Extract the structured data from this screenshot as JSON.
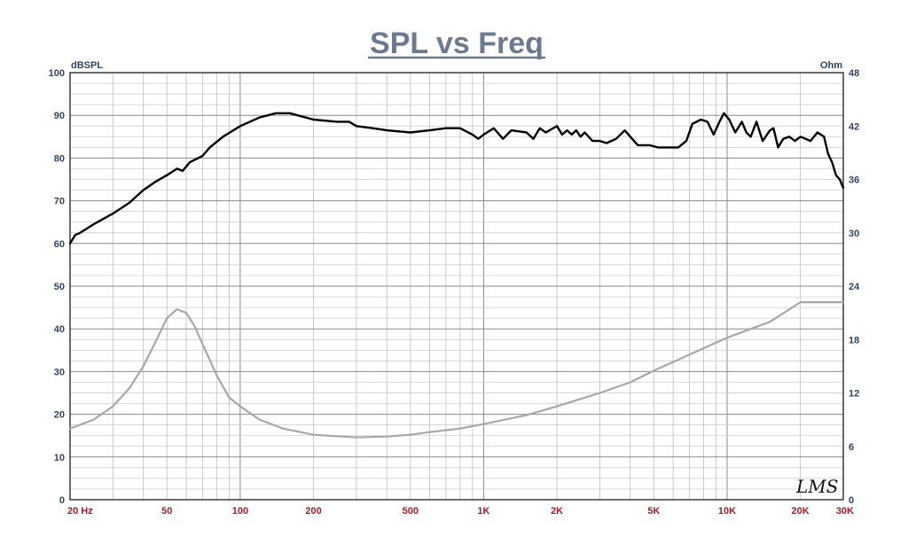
{
  "chart_data": {
    "type": "line",
    "title": "SPL vs Freq",
    "left_unit": "dBSPL",
    "right_unit": "Ohm",
    "x_scale": "log",
    "xlim": [
      20,
      30000
    ],
    "ylim": [
      0,
      100
    ],
    "y2lim": [
      0,
      48
    ],
    "grid": true,
    "x_tick_labels": [
      {
        "f": 20,
        "label": "20  Hz"
      },
      {
        "f": 50,
        "label": "50"
      },
      {
        "f": 100,
        "label": "100"
      },
      {
        "f": 200,
        "label": "200"
      },
      {
        "f": 500,
        "label": "500"
      },
      {
        "f": 1000,
        "label": "1K"
      },
      {
        "f": 2000,
        "label": "2K"
      },
      {
        "f": 5000,
        "label": "5K"
      },
      {
        "f": 10000,
        "label": "10K"
      },
      {
        "f": 20000,
        "label": "20K"
      },
      {
        "f": 30000,
        "label": "30K"
      }
    ],
    "y_ticks": [
      0,
      10,
      20,
      30,
      40,
      50,
      60,
      70,
      80,
      90,
      100
    ],
    "y2_ticks": [
      0,
      6,
      12,
      18,
      24,
      30,
      36,
      42,
      48
    ],
    "series": [
      {
        "axis": "left",
        "color": "#000000",
        "points": [
          [
            20,
            60
          ],
          [
            21,
            62
          ],
          [
            22,
            62.5
          ],
          [
            25,
            64.5
          ],
          [
            30,
            67
          ],
          [
            35,
            69.5
          ],
          [
            40,
            72.5
          ],
          [
            45,
            74.5
          ],
          [
            50,
            76
          ],
          [
            55,
            77.5
          ],
          [
            58,
            77
          ],
          [
            62,
            79
          ],
          [
            70,
            80.5
          ],
          [
            75,
            82.5
          ],
          [
            85,
            85
          ],
          [
            100,
            87.5
          ],
          [
            120,
            89.5
          ],
          [
            140,
            90.5
          ],
          [
            160,
            90.5
          ],
          [
            200,
            89
          ],
          [
            250,
            88.5
          ],
          [
            280,
            88.5
          ],
          [
            300,
            87.5
          ],
          [
            350,
            87
          ],
          [
            400,
            86.5
          ],
          [
            500,
            86
          ],
          [
            600,
            86.5
          ],
          [
            700,
            87
          ],
          [
            800,
            87
          ],
          [
            900,
            85.5
          ],
          [
            950,
            84.5
          ],
          [
            1000,
            85.5
          ],
          [
            1100,
            87
          ],
          [
            1200,
            84.5
          ],
          [
            1300,
            86.5
          ],
          [
            1500,
            86
          ],
          [
            1600,
            84.5
          ],
          [
            1700,
            87
          ],
          [
            1800,
            86
          ],
          [
            2000,
            87.5
          ],
          [
            2100,
            85.5
          ],
          [
            2200,
            86.5
          ],
          [
            2300,
            85.5
          ],
          [
            2400,
            86.5
          ],
          [
            2500,
            85
          ],
          [
            2600,
            86
          ],
          [
            2800,
            84
          ],
          [
            3000,
            84
          ],
          [
            3200,
            83.5
          ],
          [
            3500,
            84.5
          ],
          [
            3800,
            86.5
          ],
          [
            4000,
            85
          ],
          [
            4300,
            83
          ],
          [
            4800,
            83
          ],
          [
            5200,
            82.5
          ],
          [
            5800,
            82.5
          ],
          [
            6300,
            82.5
          ],
          [
            6800,
            84
          ],
          [
            7200,
            88
          ],
          [
            7800,
            89
          ],
          [
            8300,
            88.5
          ],
          [
            8800,
            85.5
          ],
          [
            9300,
            88.5
          ],
          [
            9700,
            90.5
          ],
          [
            10200,
            89
          ],
          [
            10800,
            86
          ],
          [
            11500,
            88.5
          ],
          [
            12000,
            86
          ],
          [
            12500,
            85
          ],
          [
            13200,
            88.5
          ],
          [
            14000,
            84
          ],
          [
            15000,
            86.5
          ],
          [
            15500,
            87
          ],
          [
            16200,
            82.5
          ],
          [
            17000,
            84.5
          ],
          [
            18000,
            85
          ],
          [
            19000,
            84
          ],
          [
            20000,
            85
          ],
          [
            21000,
            84.5
          ],
          [
            22000,
            84
          ],
          [
            23500,
            86
          ],
          [
            25000,
            85
          ],
          [
            26000,
            81
          ],
          [
            27000,
            79
          ],
          [
            28000,
            76
          ],
          [
            29000,
            75
          ],
          [
            30000,
            73
          ]
        ]
      },
      {
        "axis": "right",
        "color": "#a8a8a8",
        "points": [
          [
            20,
            8
          ],
          [
            25,
            9
          ],
          [
            30,
            10.5
          ],
          [
            35,
            12.5
          ],
          [
            40,
            15
          ],
          [
            45,
            17.8
          ],
          [
            50,
            20.4
          ],
          [
            55,
            21.4
          ],
          [
            60,
            21
          ],
          [
            65,
            19.5
          ],
          [
            70,
            17.5
          ],
          [
            80,
            14
          ],
          [
            90,
            11.5
          ],
          [
            100,
            10.5
          ],
          [
            120,
            9
          ],
          [
            150,
            8
          ],
          [
            200,
            7.3
          ],
          [
            300,
            7
          ],
          [
            400,
            7.1
          ],
          [
            500,
            7.3
          ],
          [
            600,
            7.6
          ],
          [
            800,
            8
          ],
          [
            1000,
            8.5
          ],
          [
            1500,
            9.5
          ],
          [
            2000,
            10.5
          ],
          [
            3000,
            12
          ],
          [
            4000,
            13.2
          ],
          [
            5000,
            14.5
          ],
          [
            7000,
            16.3
          ],
          [
            10000,
            18.2
          ],
          [
            15000,
            20
          ],
          [
            20000,
            22.2
          ],
          [
            25000,
            22.2
          ],
          [
            30000,
            22.2
          ]
        ]
      }
    ],
    "watermark": "LMS"
  }
}
